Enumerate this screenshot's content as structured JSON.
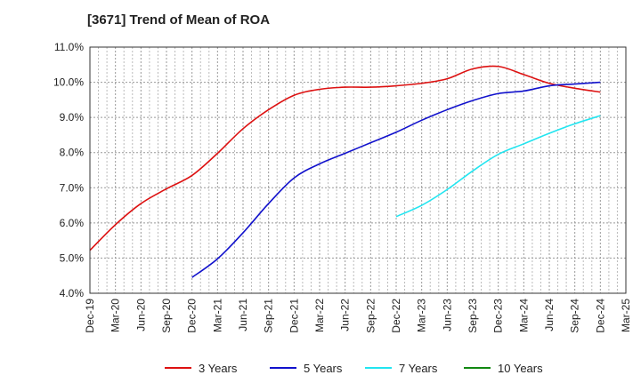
{
  "chart_data": {
    "type": "line",
    "title": "[3671]  Trend of Mean of ROA",
    "xlabel": "",
    "ylabel": "",
    "x_ticks": [
      "Dec-19",
      "Mar-20",
      "Jun-20",
      "Sep-20",
      "Dec-20",
      "Mar-21",
      "Jun-21",
      "Sep-21",
      "Dec-21",
      "Mar-22",
      "Jun-22",
      "Sep-22",
      "Dec-22",
      "Mar-23",
      "Jun-23",
      "Sep-23",
      "Dec-23",
      "Mar-24",
      "Jun-24",
      "Sep-24",
      "Dec-24",
      "Mar-25"
    ],
    "y_ticks": [
      "4.0%",
      "5.0%",
      "6.0%",
      "7.0%",
      "8.0%",
      "9.0%",
      "10.0%",
      "11.0%"
    ],
    "ylim": [
      4.0,
      11.0
    ],
    "grid": true,
    "legend_position": "bottom",
    "series": [
      {
        "name": "3 Years",
        "color": "#dd1111",
        "x": [
          "Dec-19",
          "Mar-20",
          "Jun-20",
          "Sep-20",
          "Dec-20",
          "Mar-21",
          "Jun-21",
          "Sep-21",
          "Dec-21",
          "Mar-22",
          "Jun-22",
          "Sep-22",
          "Dec-22",
          "Mar-23",
          "Jun-23",
          "Sep-23",
          "Dec-23",
          "Mar-24",
          "Jun-24",
          "Sep-24",
          "Dec-24"
        ],
        "values": [
          5.22,
          5.95,
          6.55,
          6.97,
          7.35,
          7.98,
          8.68,
          9.22,
          9.63,
          9.8,
          9.86,
          9.86,
          9.9,
          9.97,
          10.1,
          10.38,
          10.45,
          10.22,
          9.97,
          9.83,
          9.72
        ]
      },
      {
        "name": "5 Years",
        "color": "#1111cc",
        "x": [
          "Dec-20",
          "Mar-21",
          "Jun-21",
          "Sep-21",
          "Dec-21",
          "Mar-22",
          "Jun-22",
          "Sep-22",
          "Dec-22",
          "Mar-23",
          "Jun-23",
          "Sep-23",
          "Dec-23",
          "Mar-24",
          "Jun-24",
          "Sep-24",
          "Dec-24"
        ],
        "values": [
          4.45,
          4.98,
          5.72,
          6.55,
          7.28,
          7.68,
          7.98,
          8.28,
          8.58,
          8.92,
          9.22,
          9.48,
          9.68,
          9.75,
          9.9,
          9.95,
          10.0
        ]
      },
      {
        "name": "7 Years",
        "color": "#22e5f0",
        "x": [
          "Dec-22",
          "Mar-23",
          "Jun-23",
          "Sep-23",
          "Dec-23",
          "Mar-24",
          "Jun-24",
          "Sep-24",
          "Dec-24"
        ],
        "values": [
          6.18,
          6.5,
          6.95,
          7.48,
          7.95,
          8.25,
          8.55,
          8.82,
          9.05
        ]
      },
      {
        "name": "10 Years",
        "color": "#118811",
        "x": [],
        "values": []
      }
    ]
  }
}
